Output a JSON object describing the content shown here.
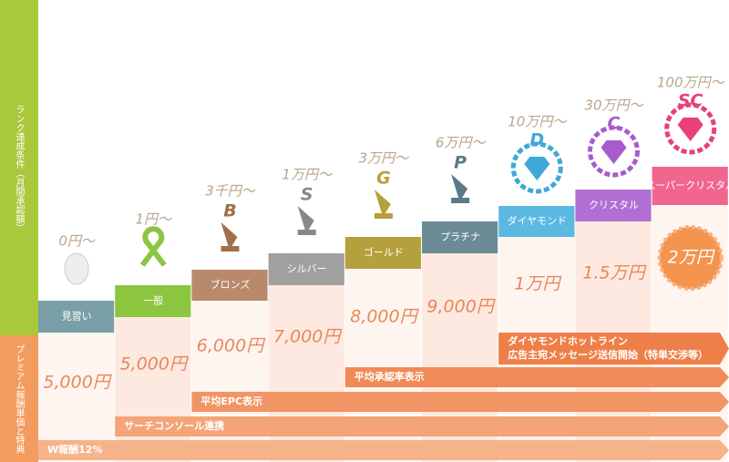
{
  "side_labels": {
    "condition": "ランク達成条件（月間承認額）",
    "reward": "プレミアム報酬単価と特典"
  },
  "tiers": [
    {
      "threshold": "0円〜",
      "badge": null,
      "name": "見習い",
      "reward": "5,000円"
    },
    {
      "threshold": "1円〜",
      "badge": null,
      "name": "一般",
      "reward": "5,000円"
    },
    {
      "threshold": "3千円〜",
      "badge": "B",
      "name": "ブロンズ",
      "reward": "6,000円"
    },
    {
      "threshold": "1万円〜",
      "badge": "S",
      "name": "シルバー",
      "reward": "7,000円"
    },
    {
      "threshold": "3万円〜",
      "badge": "G",
      "name": "ゴールド",
      "reward": "8,000円"
    },
    {
      "threshold": "6万円〜",
      "badge": "P",
      "name": "プラチナ",
      "reward": "9,000円"
    },
    {
      "threshold": "10万円〜",
      "badge": "D",
      "name": "ダイヤモンド",
      "reward": "1万円"
    },
    {
      "threshold": "30万円〜",
      "badge": "C",
      "name": "クリスタル",
      "reward": "1.5万円"
    },
    {
      "threshold": "100万円〜",
      "badge": "SC",
      "name": "スーパークリスタル",
      "reward": "2万円"
    }
  ],
  "benefits": [
    {
      "from_tier": 0,
      "lines": [
        "W報酬12%"
      ]
    },
    {
      "from_tier": 1,
      "lines": [
        "サーチコンソール連携"
      ]
    },
    {
      "from_tier": 2,
      "lines": [
        "平均EPC表示"
      ]
    },
    {
      "from_tier": 4,
      "lines": [
        "平均承認率表示"
      ]
    },
    {
      "from_tier": 6,
      "lines": [
        "ダイヤモンドホットライン",
        "広告主宛メッセージ送信開始（特単交渉等）"
      ]
    }
  ]
}
